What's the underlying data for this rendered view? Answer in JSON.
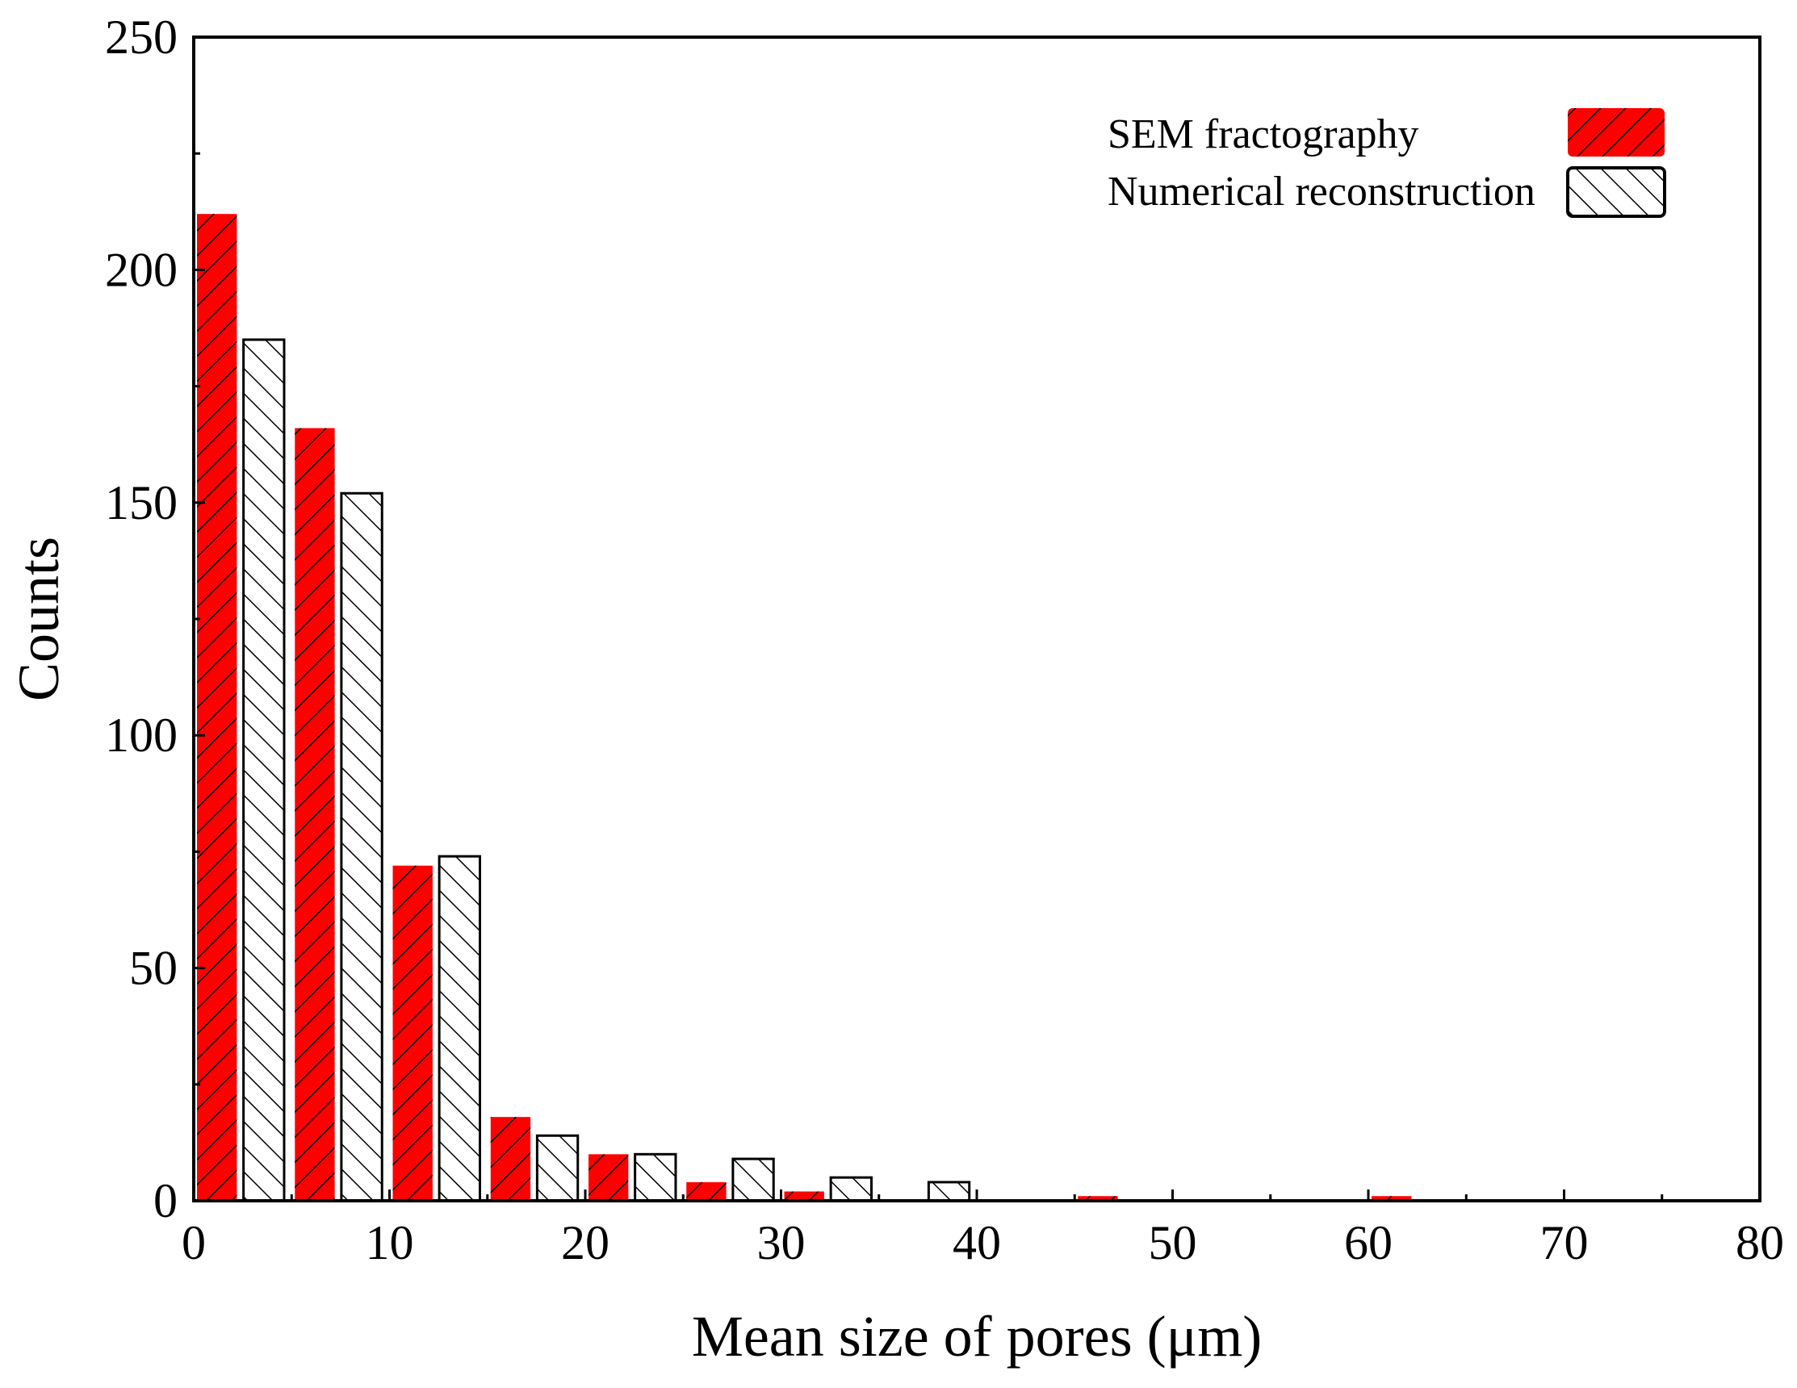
{
  "chart_data": {
    "type": "bar",
    "xlabel": "Mean size of pores (μm)",
    "ylabel": "Counts",
    "xlim": [
      0,
      80
    ],
    "ylim": [
      0,
      250
    ],
    "xticks": [
      0,
      10,
      20,
      30,
      40,
      50,
      60,
      70,
      80
    ],
    "yticks": [
      0,
      50,
      100,
      150,
      200,
      250
    ],
    "bin_width": 5,
    "legend_position": "top-right",
    "grid": false,
    "series": [
      {
        "name": "SEM fractography",
        "fill": "#ff0000",
        "hatch": "forward",
        "bins": [
          0,
          5,
          10,
          15,
          20,
          25,
          30,
          35,
          40,
          45,
          50,
          55,
          60,
          65,
          70,
          75
        ],
        "values": [
          212,
          166,
          72,
          18,
          10,
          4,
          2,
          0,
          0,
          1,
          0,
          0,
          1,
          0,
          0,
          0
        ]
      },
      {
        "name": "Numerical reconstruction",
        "fill": "#ffffff",
        "hatch": "backward",
        "bins": [
          0,
          5,
          10,
          15,
          20,
          25,
          30,
          35,
          40,
          45,
          50,
          55,
          60,
          65,
          70,
          75
        ],
        "values": [
          185,
          152,
          74,
          14,
          10,
          9,
          5,
          4,
          0,
          0,
          0,
          0,
          0,
          0,
          0,
          0
        ]
      }
    ]
  }
}
